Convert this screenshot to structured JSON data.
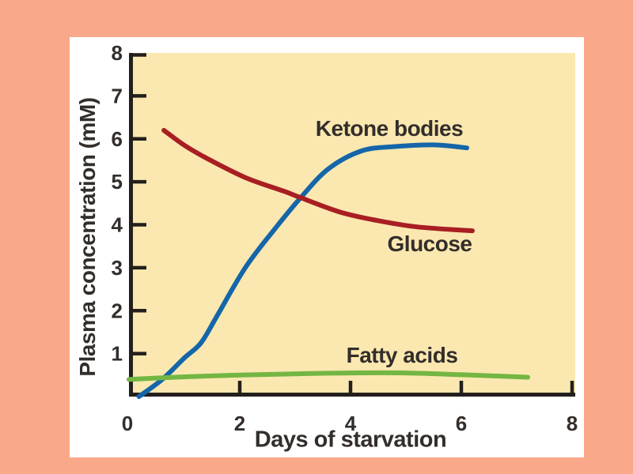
{
  "page": {
    "background_color": "#F9A98A"
  },
  "card": {
    "background_color": "#FFFFFF"
  },
  "chart_data": {
    "type": "line",
    "title": "",
    "xlabel": "Days of starvation",
    "ylabel": "Plasma concentration (mM)",
    "xlim": [
      0,
      8
    ],
    "ylim": [
      0,
      8
    ],
    "x_ticks": [
      0,
      2,
      4,
      6,
      8
    ],
    "y_ticks": [
      1,
      2,
      3,
      4,
      5,
      6,
      7,
      8
    ],
    "grid": false,
    "plot_background": "#FAE8B0",
    "axis_color": "#231F1C",
    "label_color": "#332E2B",
    "legend_position": "inline labels next to curves",
    "series": [
      {
        "name": "Ketone bodies",
        "color": "#1566A9",
        "points": [
          [
            0.18,
            0
          ],
          [
            0.6,
            0.4
          ],
          [
            1.0,
            0.9
          ],
          [
            1.3,
            1.25
          ],
          [
            1.6,
            1.9
          ],
          [
            2.1,
            3.0
          ],
          [
            2.6,
            3.85
          ],
          [
            3.1,
            4.63
          ],
          [
            3.6,
            5.3
          ],
          [
            4.2,
            5.72
          ],
          [
            4.8,
            5.82
          ],
          [
            5.5,
            5.86
          ],
          [
            6.1,
            5.79
          ]
        ]
      },
      {
        "name": "Glucose",
        "color": "#A81E22",
        "points": [
          [
            0.63,
            6.2
          ],
          [
            1.0,
            5.85
          ],
          [
            1.4,
            5.55
          ],
          [
            2.1,
            5.1
          ],
          [
            2.8,
            4.78
          ],
          [
            3.1,
            4.63
          ],
          [
            3.8,
            4.3
          ],
          [
            4.4,
            4.12
          ],
          [
            5.2,
            3.95
          ],
          [
            6.2,
            3.86
          ]
        ]
      },
      {
        "name": "Fatty acids",
        "color": "#73B643",
        "points": [
          [
            0,
            0.4
          ],
          [
            1,
            0.46
          ],
          [
            2,
            0.5
          ],
          [
            3,
            0.53
          ],
          [
            4,
            0.55
          ],
          [
            5,
            0.55
          ],
          [
            6,
            0.51
          ],
          [
            7.2,
            0.45
          ]
        ]
      }
    ]
  }
}
